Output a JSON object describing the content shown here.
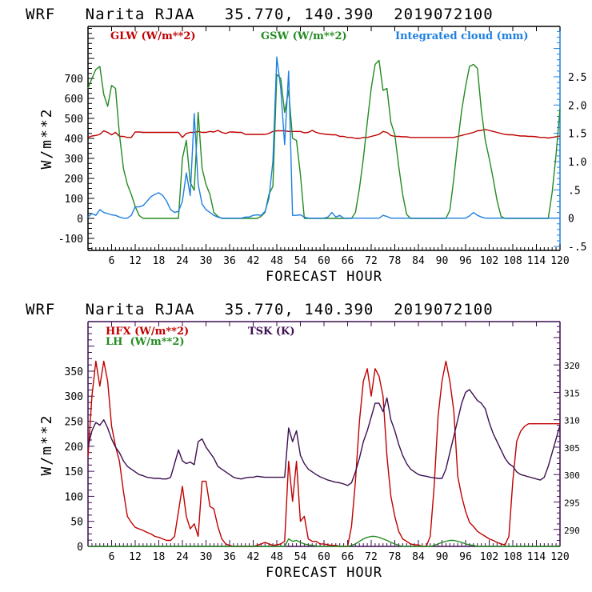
{
  "chart_data": [
    {
      "type": "line",
      "title": "WRF   Narita RJAA   35.770, 140.390  2019072100",
      "xlabel": "FORECAST HOUR",
      "ylabel": "W/m**2",
      "xlim": [
        0,
        120
      ],
      "ylim": [
        -160,
        960
      ],
      "y2lim": [
        -0.57,
        3.39
      ],
      "x_ticks": [
        6,
        12,
        18,
        24,
        30,
        36,
        42,
        48,
        54,
        60,
        66,
        72,
        78,
        84,
        90,
        96,
        102,
        108,
        114,
        120
      ],
      "y_ticks": [
        -100,
        0,
        100,
        200,
        300,
        400,
        500,
        600,
        700
      ],
      "y_tick_labels": [
        "-100",
        "0",
        "100",
        "200",
        "300",
        "400",
        "500",
        "600",
        "700"
      ],
      "y2_ticks": [
        -0.5,
        0,
        0.5,
        1.0,
        1.5,
        2.0,
        2.5
      ],
      "y2_tick_labels": [
        "-.5",
        "0",
        ".5",
        "1.0",
        "1.5",
        "2.0",
        "2.5"
      ],
      "legend_placement": "top",
      "x": [
        0,
        1,
        2,
        3,
        4,
        5,
        6,
        7,
        8,
        9,
        10,
        11,
        12,
        13,
        14,
        15,
        16,
        17,
        18,
        19,
        20,
        21,
        22,
        23,
        24,
        25,
        26,
        27,
        28,
        29,
        30,
        31,
        32,
        33,
        34,
        35,
        36,
        37,
        38,
        39,
        40,
        41,
        42,
        43,
        44,
        45,
        46,
        47,
        48,
        49,
        50,
        51,
        52,
        53,
        54,
        55,
        56,
        57,
        58,
        59,
        60,
        61,
        62,
        63,
        64,
        65,
        66,
        67,
        68,
        69,
        70,
        71,
        72,
        73,
        74,
        75,
        76,
        77,
        78,
        79,
        80,
        81,
        82,
        83,
        84,
        85,
        86,
        87,
        88,
        89,
        90,
        91,
        92,
        93,
        94,
        95,
        96,
        97,
        98,
        99,
        100,
        101,
        102,
        103,
        104,
        105,
        106,
        107,
        108,
        109,
        110,
        111,
        112,
        113,
        114,
        115,
        116,
        117,
        118,
        119,
        120
      ],
      "series": [
        {
          "name": "GLW (W/m**2)",
          "color": "#c00000",
          "axis": "left",
          "values": [
            405,
            412,
            415,
            420,
            438,
            430,
            418,
            430,
            410,
            410,
            405,
            405,
            432,
            432,
            430,
            430,
            430,
            430,
            430,
            430,
            430,
            430,
            430,
            430,
            405,
            425,
            430,
            430,
            435,
            430,
            430,
            435,
            432,
            440,
            430,
            425,
            432,
            432,
            430,
            430,
            420,
            420,
            420,
            420,
            420,
            420,
            425,
            435,
            438,
            438,
            438,
            435,
            435,
            435,
            435,
            428,
            430,
            440,
            430,
            425,
            422,
            420,
            418,
            418,
            410,
            410,
            405,
            405,
            400,
            400,
            405,
            405,
            410,
            415,
            420,
            435,
            430,
            415,
            410,
            410,
            408,
            408,
            405,
            405,
            405,
            405,
            405,
            405,
            405,
            405,
            405,
            405,
            405,
            405,
            410,
            415,
            420,
            425,
            430,
            438,
            440,
            445,
            440,
            435,
            430,
            425,
            420,
            418,
            418,
            415,
            412,
            412,
            410,
            410,
            408,
            405,
            405,
            402,
            405,
            408,
            412
          ]
        },
        {
          "name": "GSW (W/m**2)",
          "color": "#228b22",
          "axis": "left",
          "values": [
            650,
            700,
            745,
            760,
            620,
            560,
            665,
            650,
            420,
            250,
            170,
            120,
            60,
            15,
            0,
            0,
            0,
            0,
            0,
            0,
            0,
            0,
            0,
            0,
            300,
            390,
            180,
            140,
            530,
            250,
            170,
            120,
            30,
            10,
            0,
            0,
            0,
            0,
            0,
            0,
            0,
            0,
            0,
            0,
            10,
            30,
            120,
            160,
            720,
            700,
            530,
            640,
            400,
            390,
            220,
            0,
            0,
            0,
            0,
            0,
            0,
            0,
            0,
            0,
            0,
            0,
            0,
            0,
            30,
            150,
            300,
            480,
            650,
            770,
            790,
            640,
            650,
            480,
            420,
            260,
            120,
            20,
            0,
            0,
            0,
            0,
            0,
            0,
            0,
            0,
            0,
            0,
            40,
            200,
            380,
            540,
            660,
            760,
            770,
            750,
            540,
            390,
            300,
            200,
            90,
            10,
            0,
            0,
            0,
            0,
            0,
            0,
            0,
            0,
            0,
            0,
            0,
            0,
            130,
            320,
            550
          ]
        },
        {
          "name": "Integrated cloud (mm)",
          "color": "#1e7fe0",
          "axis": "right",
          "values": [
            0.02,
            0.08,
            0.05,
            0.15,
            0.1,
            0.08,
            0.06,
            0.05,
            0.02,
            0.0,
            0.0,
            0.05,
            0.2,
            0.2,
            0.22,
            0.3,
            0.38,
            0.42,
            0.45,
            0.4,
            0.3,
            0.15,
            0.1,
            0.12,
            0.3,
            0.8,
            0.4,
            1.85,
            0.6,
            0.25,
            0.15,
            0.1,
            0.05,
            0.02,
            0.0,
            0.0,
            0.0,
            0.0,
            0.0,
            0.0,
            0.02,
            0.02,
            0.05,
            0.06,
            0.05,
            0.12,
            0.35,
            1.0,
            2.85,
            2.3,
            1.3,
            2.6,
            0.05,
            0.05,
            0.06,
            0.02,
            0.0,
            0.0,
            0.0,
            0.0,
            0.0,
            0.02,
            0.1,
            0.02,
            0.05,
            0.0,
            0.0,
            0.0,
            0.0,
            0.0,
            0.0,
            0.0,
            0.0,
            0.0,
            0.0,
            0.05,
            0.03,
            0.0,
            0.0,
            0.0,
            0.0,
            0.0,
            0.0,
            0.0,
            0.0,
            0.0,
            0.0,
            0.0,
            0.0,
            0.0,
            0.0,
            0.0,
            0.0,
            0.0,
            0.0,
            0.0,
            0.0,
            0.04,
            0.1,
            0.05,
            0.02,
            0.0,
            0.0,
            0.0,
            0.0,
            0.0,
            0.0,
            0.0,
            0.0,
            0.0,
            0.0,
            0.0,
            0.0,
            0.0,
            0.0,
            0.0,
            0.0,
            0.0,
            0.0,
            0.0,
            0.0
          ]
        }
      ]
    },
    {
      "type": "line",
      "title": "WRF   Narita RJAA   35.770, 140.390  2019072100",
      "xlabel": "FORECAST HOUR",
      "ylabel": "W/m**2",
      "xlim": [
        0,
        120
      ],
      "ylim": [
        0,
        449
      ],
      "y2lim": [
        286.9,
        327.9
      ],
      "x_ticks": [
        6,
        12,
        18,
        24,
        30,
        36,
        42,
        48,
        54,
        60,
        66,
        72,
        78,
        84,
        90,
        96,
        102,
        108,
        114,
        120
      ],
      "y_ticks": [
        0,
        50,
        100,
        150,
        200,
        250,
        300,
        350
      ],
      "y_tick_labels": [
        "0",
        "50",
        "100",
        "150",
        "200",
        "250",
        "300",
        "350"
      ],
      "y2_ticks": [
        290,
        295,
        300,
        305,
        310,
        315,
        320
      ],
      "y2_tick_labels": [
        "290",
        "295",
        "300",
        "305",
        "310",
        "315",
        "320"
      ],
      "legend_placement": "top",
      "x": [
        0,
        1,
        2,
        3,
        4,
        5,
        6,
        7,
        8,
        9,
        10,
        11,
        12,
        13,
        14,
        15,
        16,
        17,
        18,
        19,
        20,
        21,
        22,
        23,
        24,
        25,
        26,
        27,
        28,
        29,
        30,
        31,
        32,
        33,
        34,
        35,
        36,
        37,
        38,
        39,
        40,
        41,
        42,
        43,
        44,
        45,
        46,
        47,
        48,
        49,
        50,
        51,
        52,
        53,
        54,
        55,
        56,
        57,
        58,
        59,
        60,
        61,
        62,
        63,
        64,
        65,
        66,
        67,
        68,
        69,
        70,
        71,
        72,
        73,
        74,
        75,
        76,
        77,
        78,
        79,
        80,
        81,
        82,
        83,
        84,
        85,
        86,
        87,
        88,
        89,
        90,
        91,
        92,
        93,
        94,
        95,
        96,
        97,
        98,
        99,
        100,
        101,
        102,
        103,
        104,
        105,
        106,
        107,
        108,
        109,
        110,
        111,
        112,
        113,
        114,
        115,
        116,
        117,
        118,
        119,
        120
      ],
      "series": [
        {
          "name": "HFX (W/m**2)",
          "color": "#c00000",
          "axis": "left",
          "values": [
            180,
            300,
            370,
            320,
            370,
            330,
            240,
            200,
            170,
            110,
            60,
            48,
            38,
            35,
            32,
            28,
            25,
            20,
            18,
            15,
            12,
            12,
            20,
            70,
            120,
            60,
            35,
            45,
            20,
            130,
            130,
            80,
            75,
            40,
            15,
            5,
            2,
            0,
            0,
            0,
            0,
            0,
            0,
            2,
            5,
            8,
            5,
            2,
            3,
            5,
            10,
            170,
            90,
            170,
            50,
            60,
            15,
            10,
            10,
            5,
            5,
            3,
            2,
            2,
            0,
            0,
            0,
            40,
            130,
            250,
            330,
            355,
            300,
            355,
            340,
            300,
            180,
            100,
            60,
            30,
            15,
            10,
            5,
            3,
            3,
            0,
            0,
            20,
            120,
            260,
            330,
            370,
            330,
            270,
            140,
            100,
            70,
            48,
            40,
            30,
            25,
            20,
            15,
            12,
            8,
            5,
            3,
            20,
            130,
            210,
            230,
            240,
            245,
            245,
            245,
            245,
            245,
            245,
            245,
            245,
            245
          ]
        },
        {
          "name": "LH  (W/m**2)",
          "color": "#228b22",
          "axis": "left",
          "values": [
            0,
            0,
            0,
            0,
            0,
            0,
            0,
            0,
            0,
            0,
            0,
            0,
            0,
            0,
            0,
            0,
            0,
            0,
            0,
            0,
            0,
            0,
            0,
            0,
            0,
            0,
            0,
            0,
            0,
            0,
            0,
            0,
            0,
            0,
            0,
            0,
            0,
            0,
            0,
            0,
            0,
            0,
            0,
            0,
            0,
            0,
            0,
            0,
            0,
            0,
            0,
            15,
            10,
            12,
            8,
            5,
            3,
            2,
            1,
            0,
            0,
            0,
            0,
            0,
            0,
            0,
            0,
            2,
            5,
            10,
            15,
            18,
            20,
            20,
            18,
            15,
            12,
            8,
            5,
            2,
            0,
            0,
            0,
            0,
            0,
            0,
            0,
            0,
            2,
            5,
            8,
            10,
            12,
            12,
            10,
            8,
            5,
            3,
            2,
            0,
            0,
            0,
            0,
            0,
            0,
            0,
            0,
            0,
            0,
            0,
            0,
            0,
            0,
            0,
            0,
            0,
            0,
            0,
            0,
            0,
            0
          ]
        },
        {
          "name": "TSK (K)",
          "color": "#3c0f50",
          "axis": "right",
          "values": [
            305,
            308,
            309.5,
            309,
            310,
            308.5,
            306.5,
            305,
            304,
            302.5,
            301.5,
            301,
            300.5,
            300,
            299.8,
            299.5,
            299.4,
            299.3,
            299.3,
            299.2,
            299.2,
            299.5,
            302,
            304.5,
            302.5,
            302,
            302.3,
            301.8,
            306,
            306.5,
            305,
            304,
            303,
            301.5,
            301,
            300.5,
            300,
            299.5,
            299.3,
            299.2,
            299.4,
            299.5,
            299.5,
            299.7,
            299.6,
            299.5,
            299.5,
            299.5,
            299.5,
            299.5,
            299.5,
            308.5,
            306,
            308,
            303.5,
            302,
            301,
            300.5,
            300,
            299.6,
            299.3,
            299,
            298.8,
            298.6,
            298.5,
            298.3,
            298,
            298.5,
            300.5,
            303,
            306,
            308,
            310.5,
            313,
            313,
            311.5,
            314,
            310,
            308,
            305.5,
            303.5,
            302,
            301,
            300.5,
            300,
            299.8,
            299.7,
            299.5,
            299.4,
            299.3,
            299.3,
            301,
            304,
            307,
            310,
            313,
            315,
            315.5,
            314.5,
            313.5,
            313,
            312,
            309.5,
            307.5,
            306,
            304.5,
            303,
            302,
            301.5,
            300.5,
            300,
            299.8,
            299.6,
            299.4,
            299.2,
            299,
            299.5,
            301.5,
            304,
            306.5,
            309
          ]
        }
      ]
    }
  ],
  "panels": [
    {
      "title": "WRF   Narita RJAA   35.770, 140.390  2019072100",
      "xlabel": "FORECAST HOUR",
      "ylabel": "W/m**2",
      "legend": [
        {
          "label": "GLW (W/m**2)",
          "color": "#c00000"
        },
        {
          "label": "GSW (W/m**2)",
          "color": "#228b22"
        },
        {
          "label": "Integrated cloud (mm)",
          "color": "#1e7fe0"
        }
      ],
      "axis_color": "#000000",
      "right_axis_color": "#1e7fe0"
    },
    {
      "title": "WRF   Narita RJAA   35.770, 140.390  2019072100",
      "xlabel": "FORECAST HOUR",
      "ylabel": "W/m**2",
      "legend": [
        {
          "label": "HFX (W/m**2)",
          "color": "#c00000"
        },
        {
          "label": "LH  (W/m**2)",
          "color": "#228b22"
        },
        {
          "label": "TSK (K)",
          "color": "#3c0f50"
        }
      ],
      "axis_color": "#3c0f50",
      "right_axis_color": "#3c0f50"
    }
  ]
}
